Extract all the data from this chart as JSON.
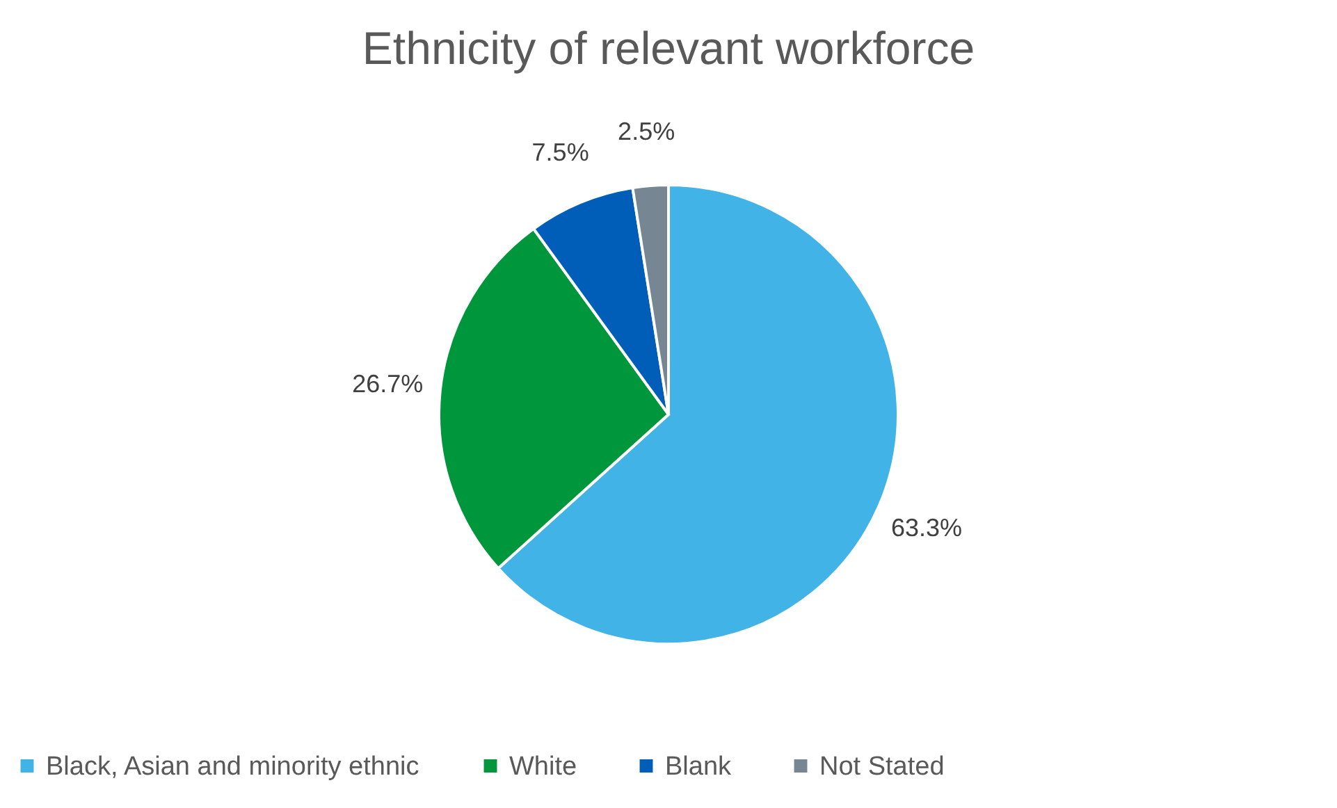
{
  "chart_data": {
    "type": "pie",
    "title": "Ethnicity of relevant workforce",
    "categories": [
      "Black, Asian and minority ethnic",
      "White",
      "Blank",
      "Not Stated"
    ],
    "values": [
      63.3,
      26.7,
      7.5,
      2.5
    ],
    "colors": [
      "#41b3e6",
      "#00963c",
      "#005eb8",
      "#768692"
    ],
    "value_labels": [
      "63.3%",
      "26.7%",
      "7.5%",
      "2.5%"
    ],
    "legend": "bottom"
  }
}
